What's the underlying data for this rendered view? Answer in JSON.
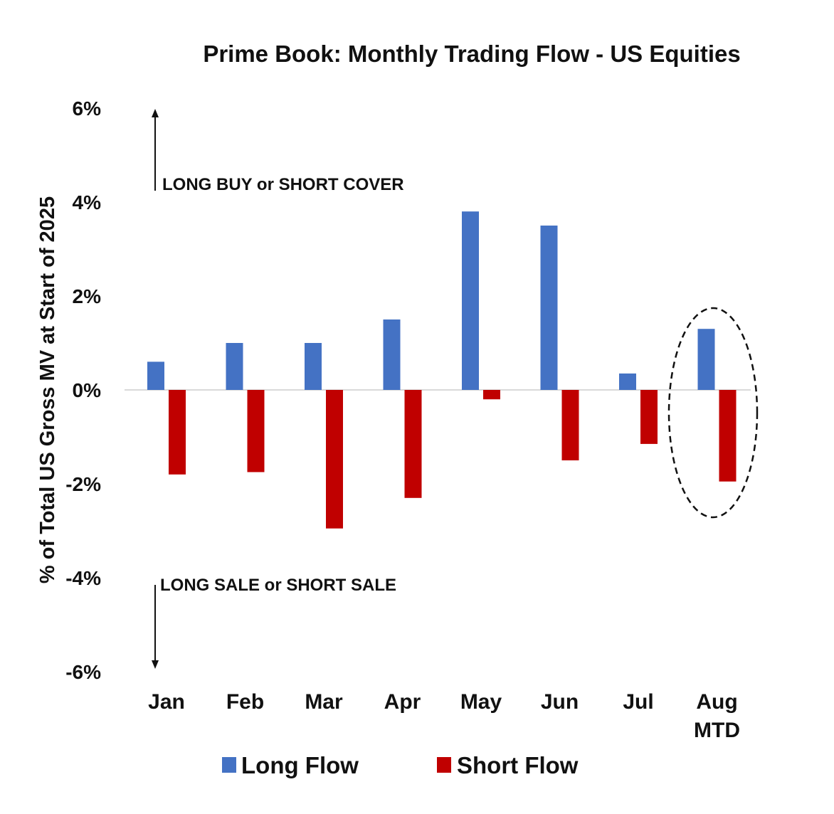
{
  "chart_data": {
    "type": "bar",
    "title": "Prime Book: Monthly Trading Flow - US Equities",
    "ylabel": "% of Total US Gross MV at Start of 2025",
    "xlabel": "",
    "categories": [
      [
        "Jan"
      ],
      [
        "Feb"
      ],
      [
        "Mar"
      ],
      [
        "Apr"
      ],
      [
        "May"
      ],
      [
        "Jun"
      ],
      [
        "Jul"
      ],
      [
        "Aug",
        "MTD"
      ]
    ],
    "series": [
      {
        "name": "Long Flow",
        "color": "#4472C4",
        "values": [
          0.6,
          1.0,
          1.0,
          1.5,
          3.8,
          3.5,
          0.35,
          1.3
        ]
      },
      {
        "name": "Short Flow",
        "color": "#C00000",
        "values": [
          -1.8,
          -1.75,
          -2.95,
          -2.3,
          -0.2,
          -1.5,
          -1.15,
          -1.95
        ]
      }
    ],
    "ylim": [
      -6,
      6
    ],
    "yticks": [
      6,
      4,
      2,
      0,
      -2,
      -4,
      -6
    ],
    "ytick_labels": [
      "6%",
      "4%",
      "2%",
      "0%",
      "-2%",
      "-4%",
      "-6%"
    ],
    "grid": false,
    "legend_position": "bottom",
    "annotations": {
      "up": "LONG BUY or SHORT COVER",
      "down": "LONG SALE or SHORT SALE"
    },
    "highlight": "dashed ellipse around Aug MTD"
  }
}
